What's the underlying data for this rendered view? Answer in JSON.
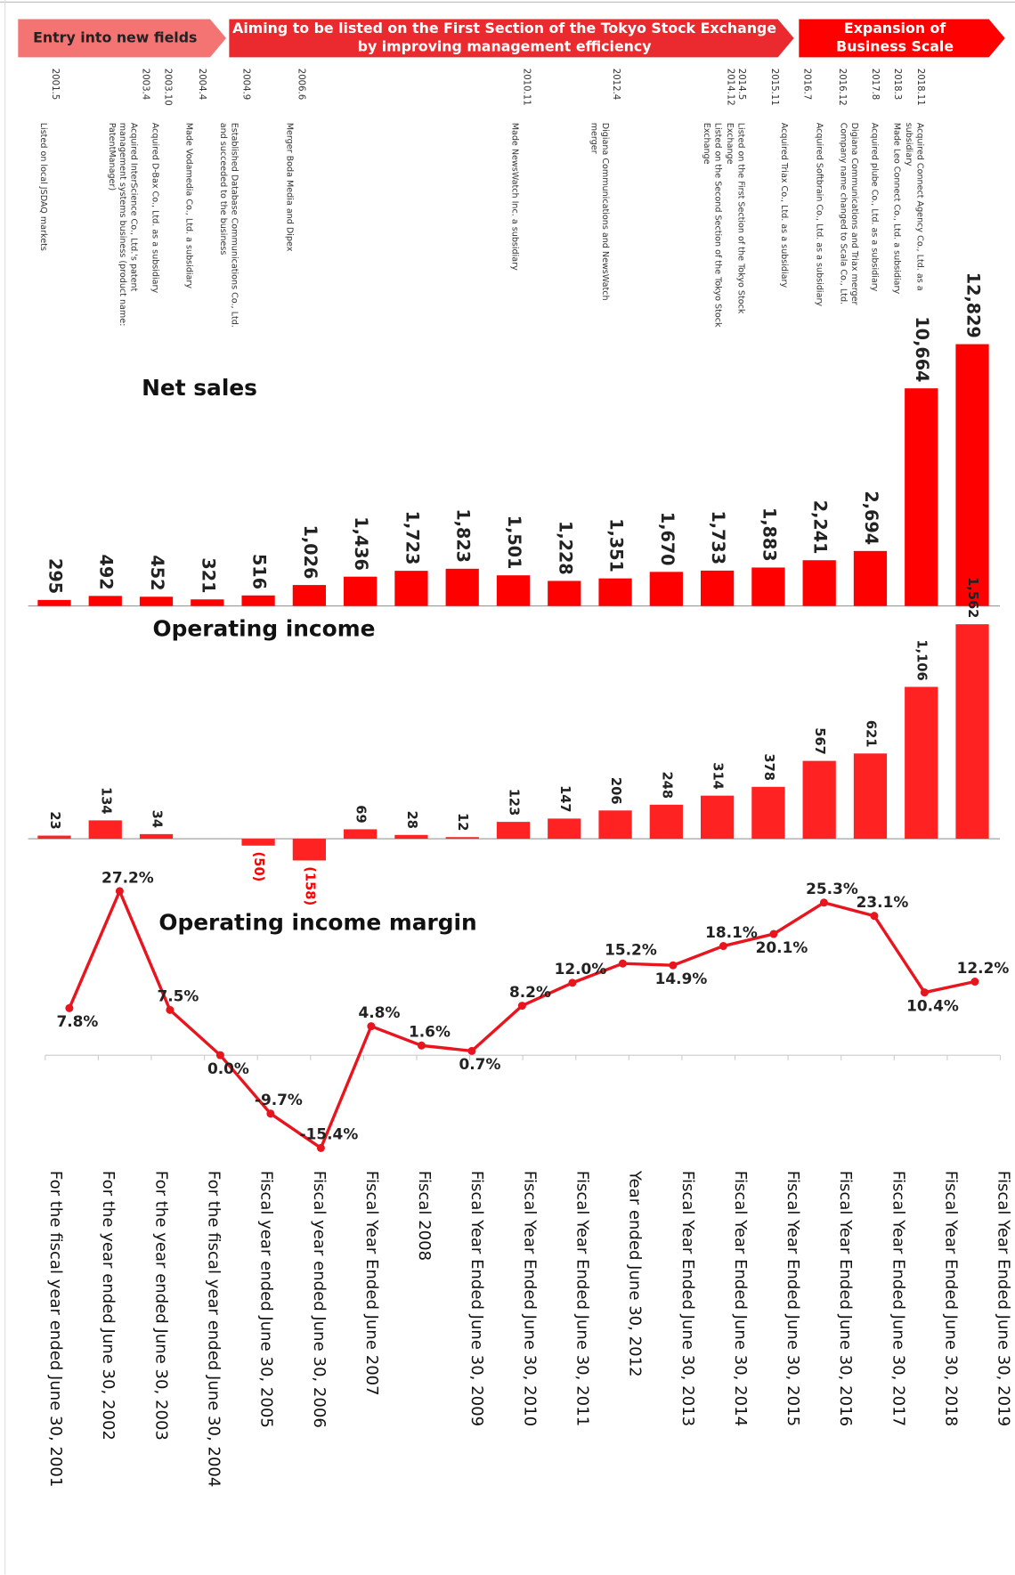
{
  "banners": [
    {
      "lines": [
        "Entry into new fields"
      ],
      "color": "#f47373",
      "text_color": "#222222"
    },
    {
      "lines": [
        "Aiming to be listed on the First Section of the Tokyo Stock Exchange",
        "by improving management efficiency"
      ],
      "color": "#ea2a2f",
      "text_color": "#ffffff"
    },
    {
      "lines": [
        "Expansion of",
        "Business Scale"
      ],
      "color": "#ff0000",
      "text_color": "#ffffff"
    }
  ],
  "timeline": [
    {
      "date": "2001.5",
      "lines": [
        "Listed on local JSDAQ markets"
      ]
    },
    {
      "date": "2003.4",
      "lines": [
        "Acquired InterScience Co., Ltd.'s patent",
        "management systems business (product name:",
        "PatentManager)"
      ]
    },
    {
      "date": "2003.10",
      "lines": [
        "Acquired D-Bax Co., Ltd. as a subsidiary"
      ]
    },
    {
      "date": "2004.4",
      "lines": [
        "Made Vodamedia Co., Ltd. a subsidiary"
      ]
    },
    {
      "date": "2004.9",
      "lines": [
        "Established Database Communications Co., Ltd.",
        "and succeeded to the business"
      ]
    },
    {
      "date": "2006.6",
      "lines": [
        "Merger Boda Media and Dipex"
      ]
    },
    {
      "date": "2010.11",
      "lines": [
        "Made NewsWatch Inc. a subsidiary"
      ]
    },
    {
      "date": "2012.4",
      "lines": [
        "Digiana Communications and NewsWatch",
        "merger"
      ]
    },
    {
      "date": "2014.12",
      "lines": [
        "Listed on the First Section of the Tokyo Stock",
        "Exchange"
      ]
    },
    {
      "date": "2014.5",
      "lines": [
        "Listed on the Second Section of the Tokyo Stock",
        "Exchange"
      ]
    },
    {
      "date": "2015.11",
      "lines": [
        "Acquired Triax Co., Ltd. as a subsidiary"
      ]
    },
    {
      "date": "2016.7",
      "lines": [
        "Acquired Softbrain Co., Ltd. as a subsidiary"
      ]
    },
    {
      "date": "2016.12",
      "lines": [
        "Digiana Communications and Triax merger",
        "Company name changed to Scala Co., Ltd."
      ]
    },
    {
      "date": "2017.8",
      "lines": [
        "Acquired plube Co., Ltd. as a subsidiary"
      ]
    },
    {
      "date": "2018.3",
      "lines": [
        "Made Leo Connect Co., Ltd. a subsidiary"
      ]
    },
    {
      "date": "2018.11",
      "lines": [
        "Acquired Connect Agency Co., Ltd. as a",
        "subsidiary"
      ]
    }
  ],
  "chart_data": [
    {
      "type": "bar",
      "title": "Net sales",
      "values": [
        295,
        492,
        452,
        321,
        516,
        1026,
        1436,
        1723,
        1823,
        1501,
        1228,
        1351,
        1670,
        1733,
        1883,
        2241,
        2694,
        10664,
        12829
      ],
      "value_labels": [
        "295",
        "492",
        "452",
        "321",
        "516",
        "1,026",
        "1,436",
        "1,723",
        "1,823",
        "1,501",
        "1,228",
        "1,351",
        "1,670",
        "1,733",
        "1,883",
        "2,241",
        "2,694",
        "10,664",
        "12,829"
      ],
      "color": "#ff0000",
      "ylim": [
        0,
        13000
      ]
    },
    {
      "type": "bar",
      "title": "Operating income",
      "values": [
        23,
        134,
        34,
        0,
        -50,
        -158,
        69,
        28,
        12,
        123,
        147,
        206,
        248,
        314,
        378,
        567,
        621,
        1106,
        1562
      ],
      "value_labels": [
        "23",
        "134",
        "34",
        null,
        "(50)",
        "(158)",
        "69",
        "28",
        "12",
        "123",
        "147",
        "206",
        "248",
        "314",
        "378",
        "567",
        "621",
        "1,106",
        "1,562"
      ],
      "color": "#ff2222",
      "negative_label_color": "#ff0000",
      "ylim": [
        -200,
        1600
      ]
    },
    {
      "type": "line",
      "title": "Operating income margin",
      "categories": [
        "For the fiscal year ended June 30, 2001",
        "For the year ended June 30, 2002",
        "For the year ended June 30, 2003",
        "For the fiscal year ended June 30, 2004",
        "Fiscal year ended June 30, 2005",
        "Fiscal year ended June 30, 2006",
        "Fiscal Year Ended June 2007",
        "Fiscal 2008",
        "Fiscal Year Ended June 30, 2009",
        "Fiscal Year Ended June 30, 2010",
        "Fiscal Year Ended June 30, 2011",
        "Year ended June 30, 2012",
        "Fiscal Year Ended June 30, 2013",
        "Fiscal Year Ended June 30, 2014",
        "Fiscal Year Ended June 30, 2015",
        "Fiscal Year Ended June 30, 2016",
        "Fiscal Year Ended June 30, 2017",
        "Fiscal Year Ended June 30, 2018",
        "Fiscal Year Ended June 30, 2019"
      ],
      "values": [
        7.8,
        27.2,
        7.5,
        0.0,
        -9.7,
        -15.4,
        4.8,
        1.6,
        0.7,
        8.2,
        12.0,
        15.2,
        14.9,
        18.1,
        20.1,
        25.3,
        23.1,
        10.4,
        12.2
      ],
      "value_labels": [
        "7.8%",
        "27.2%",
        "7.5%",
        "0.0%",
        "-9.7%",
        "-15.4%",
        "4.8%",
        "1.6%",
        "0.7%",
        "8.2%",
        "12.0%",
        "15.2%",
        "14.9%",
        "18.1%",
        "20.1%",
        "25.3%",
        "23.1%",
        "10.4%",
        "12.2%"
      ],
      "color": "#e8141e",
      "ylim": [
        -16,
        28
      ]
    }
  ]
}
